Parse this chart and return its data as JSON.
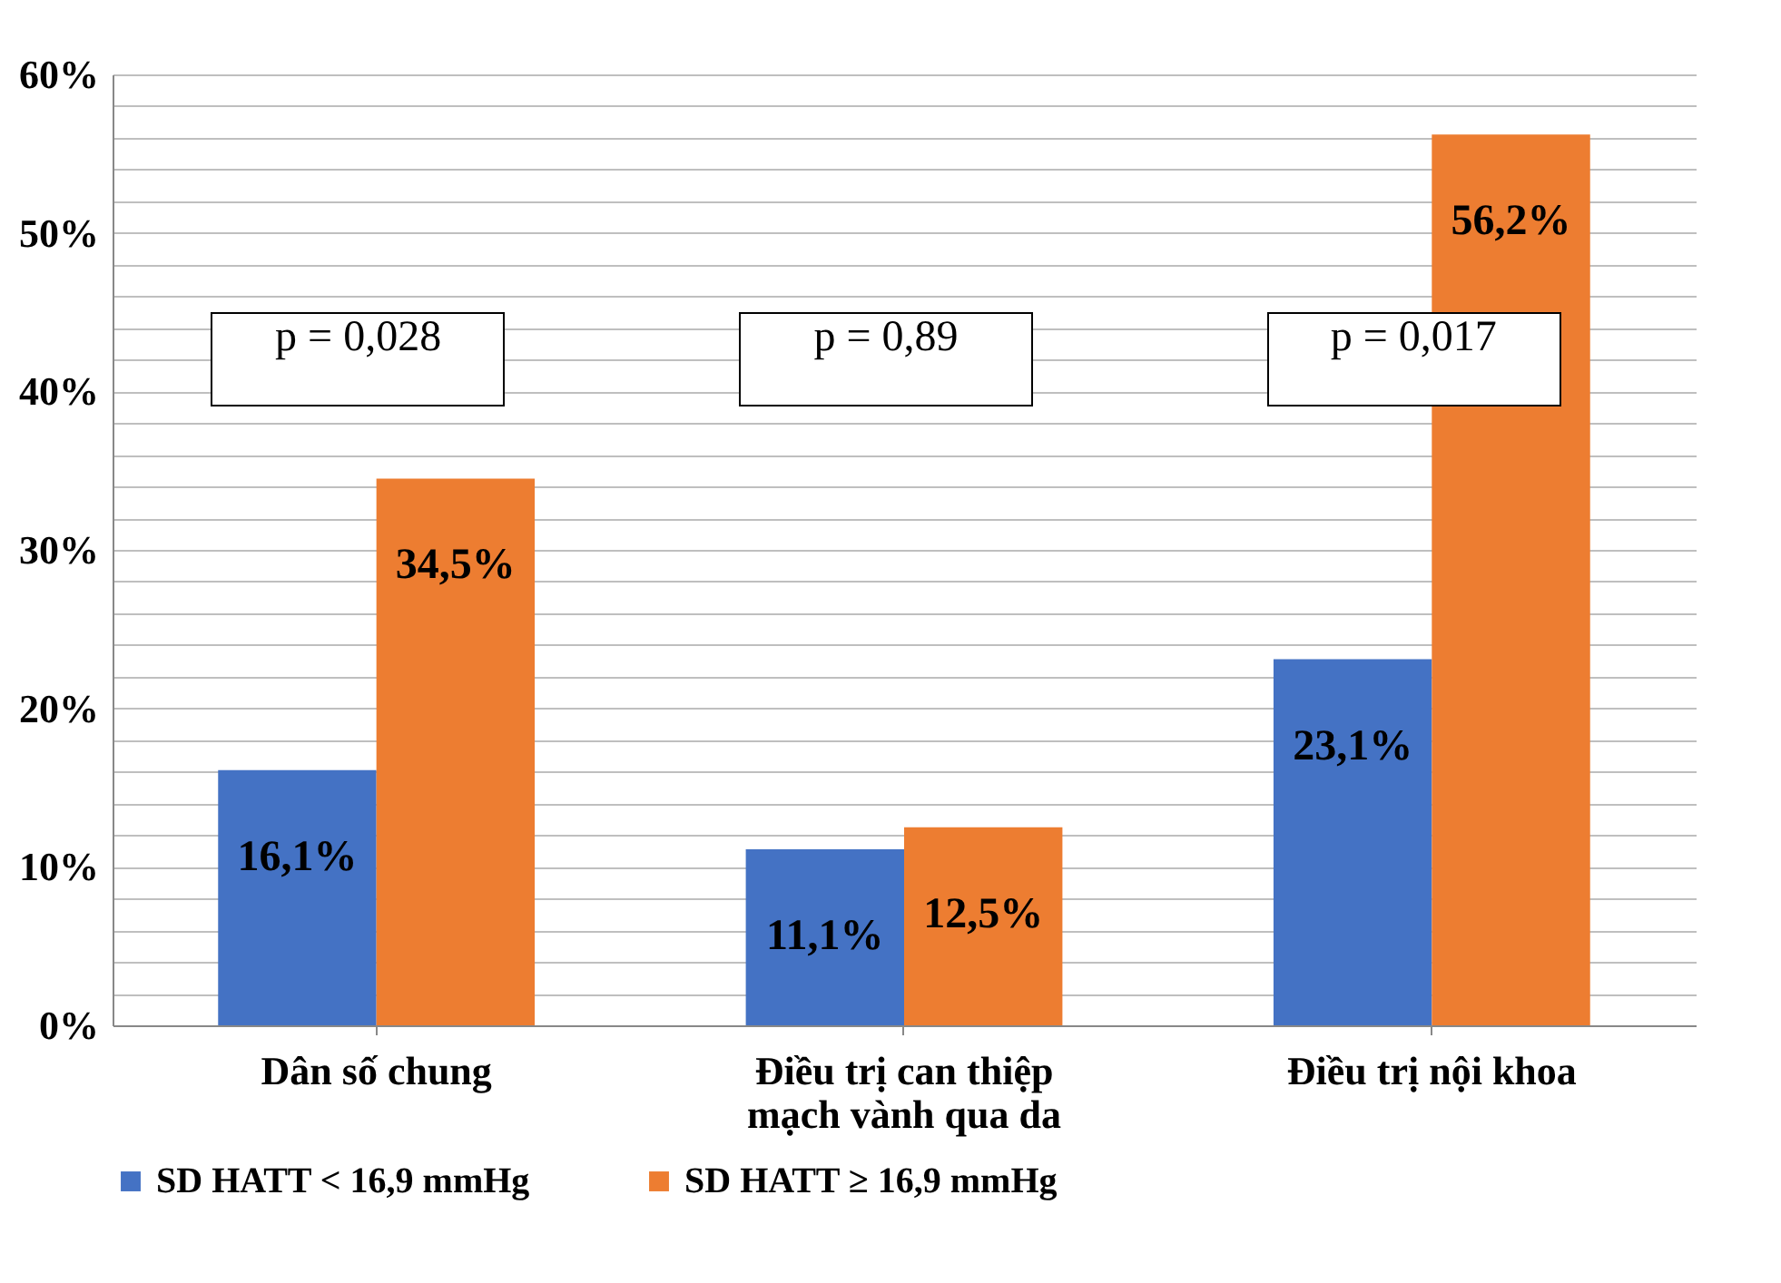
{
  "chart_data": {
    "type": "bar",
    "categories": [
      "Dân số chung",
      "Điều trị can thiệp mạch vành qua da",
      "Điều trị nội khoa"
    ],
    "series": [
      {
        "name": "SD HATT < 16,9 mmHg",
        "color": "#4472c4",
        "values": [
          16.1,
          11.1,
          23.1
        ],
        "value_labels": [
          "16,1%",
          "11,1%",
          "23,1%"
        ]
      },
      {
        "name": "SD HATT ≥ 16,9 mmHg",
        "color": "#ed7d31",
        "values": [
          34.5,
          12.5,
          56.2
        ],
        "value_labels": [
          "34,5%",
          "12,5%",
          "56,2%"
        ]
      }
    ],
    "ylim": [
      0,
      60
    ],
    "yticks": [
      {
        "value": 0,
        "label": "0%"
      },
      {
        "value": 2,
        "label": null
      },
      {
        "value": 4,
        "label": null
      },
      {
        "value": 6,
        "label": null
      },
      {
        "value": 8,
        "label": null
      },
      {
        "value": 10,
        "label": "10%"
      },
      {
        "value": 12,
        "label": null
      },
      {
        "value": 14,
        "label": null
      },
      {
        "value": 16,
        "label": null
      },
      {
        "value": 18,
        "label": null
      },
      {
        "value": 20,
        "label": "20%"
      },
      {
        "value": 22,
        "label": null
      },
      {
        "value": 24,
        "label": null
      },
      {
        "value": 26,
        "label": null
      },
      {
        "value": 28,
        "label": null
      },
      {
        "value": 30,
        "label": "30%"
      },
      {
        "value": 32,
        "label": null
      },
      {
        "value": 34,
        "label": null
      },
      {
        "value": 36,
        "label": null
      },
      {
        "value": 38,
        "label": null
      },
      {
        "value": 40,
        "label": "40%"
      },
      {
        "value": 42,
        "label": null
      },
      {
        "value": 44,
        "label": null
      },
      {
        "value": 46,
        "label": null
      },
      {
        "value": 48,
        "label": null
      },
      {
        "value": 50,
        "label": "50%"
      },
      {
        "value": 52,
        "label": null
      },
      {
        "value": 54,
        "label": null
      },
      {
        "value": 56,
        "label": null
      },
      {
        "value": 58,
        "label": null
      },
      {
        "value": 60,
        "label": "60%"
      }
    ],
    "grid": "y",
    "legend": "bottom",
    "annotations": [
      "p = 0,028",
      "p = 0,89",
      "p = 0,017"
    ]
  }
}
